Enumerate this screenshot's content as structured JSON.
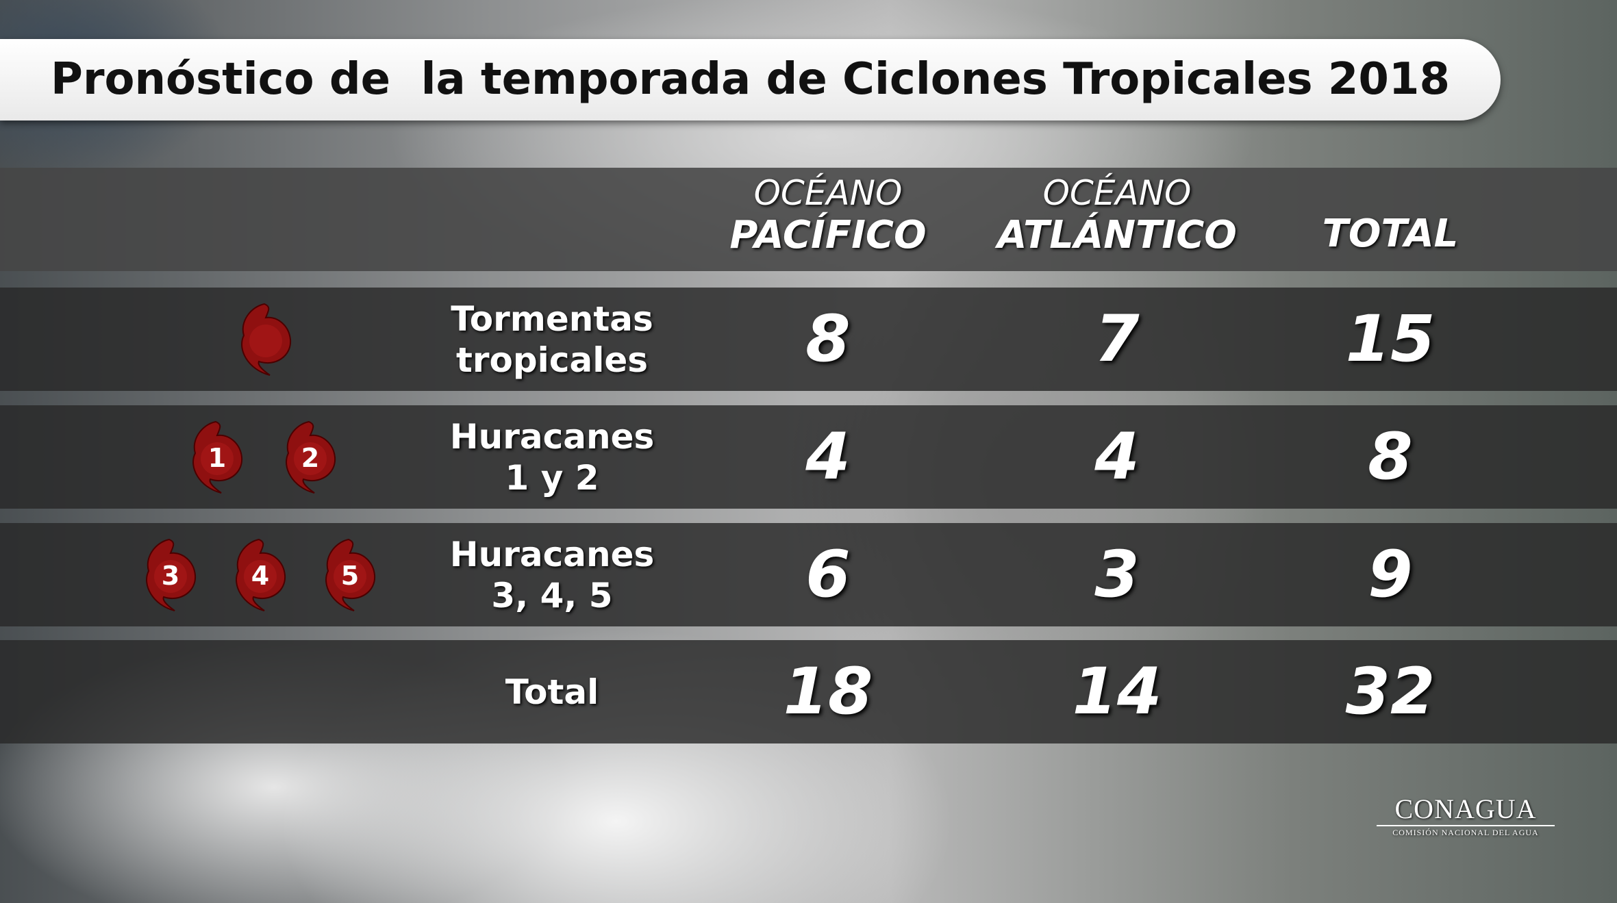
{
  "title": "Pronóstico de  la temporada de Ciclones Tropicales 2018",
  "table": {
    "columns": [
      [
        "OCÉANO",
        "PACÍFICO"
      ],
      [
        "OCÉANO",
        "ATLÁNTICO"
      ],
      [
        "TOTAL"
      ]
    ],
    "rows": [
      {
        "label": [
          "Tormentas",
          "tropicales"
        ],
        "icons": [],
        "values": [
          8,
          7,
          15
        ]
      },
      {
        "label": [
          "Huracanes",
          "1 y 2"
        ],
        "icons": [
          1,
          2
        ],
        "values": [
          4,
          4,
          8
        ]
      },
      {
        "label": [
          "Huracanes",
          "3, 4, 5"
        ],
        "icons": [
          3,
          4,
          5
        ],
        "values": [
          6,
          3,
          9
        ]
      },
      {
        "label": [
          "Total"
        ],
        "icons": [],
        "values": [
          18,
          14,
          32
        ]
      }
    ]
  },
  "logo": {
    "name": "CONAGUA",
    "subtitle": "COMISIÓN NACIONAL DEL AGUA"
  }
}
